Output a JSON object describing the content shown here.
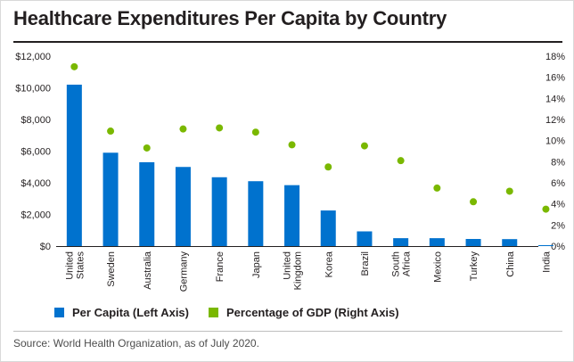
{
  "title": "Healthcare Expenditures Per Capita by Country",
  "source": "Source: World Health Organization, as of July 2020.",
  "colors": {
    "bar": "#0072ce",
    "dot": "#7ab800"
  },
  "chart_data": {
    "type": "bar",
    "title": "Healthcare Expenditures Per Capita by Country",
    "categories": [
      [
        "United",
        "States"
      ],
      [
        "Sweden"
      ],
      [
        "Australia"
      ],
      [
        "Germany"
      ],
      [
        "France"
      ],
      [
        "Japan"
      ],
      [
        "United",
        "Kingdom"
      ],
      [
        "Korea"
      ],
      [
        "Brazil"
      ],
      [
        "South",
        "Africa"
      ],
      [
        "Mexico"
      ],
      [
        "Turkey"
      ],
      [
        "China"
      ],
      [
        "India"
      ]
    ],
    "series": [
      {
        "name": "Per Capita (Left Axis)",
        "type": "bar",
        "axis": "left",
        "values": [
          10200,
          5900,
          5300,
          5000,
          4350,
          4100,
          3850,
          2250,
          930,
          500,
          500,
          450,
          440,
          60
        ]
      },
      {
        "name": "Percentage of GDP (Right Axis)",
        "type": "scatter",
        "axis": "right",
        "values": [
          17.0,
          10.9,
          9.3,
          11.1,
          11.2,
          10.8,
          9.6,
          7.5,
          9.5,
          8.1,
          5.5,
          4.2,
          5.2,
          3.5
        ]
      }
    ],
    "left_axis": {
      "ylim": [
        0,
        12000
      ],
      "ticks": [
        "$0",
        "$2,000",
        "$4,000",
        "$6,000",
        "$8,000",
        "$10,000",
        "$12,000"
      ]
    },
    "right_axis": {
      "ylim": [
        0,
        18
      ],
      "ticks": [
        "0%",
        "2%",
        "4%",
        "6%",
        "8%",
        "10%",
        "12%",
        "14%",
        "16%",
        "18%"
      ]
    },
    "grid": false,
    "legend": "bottom-left"
  }
}
